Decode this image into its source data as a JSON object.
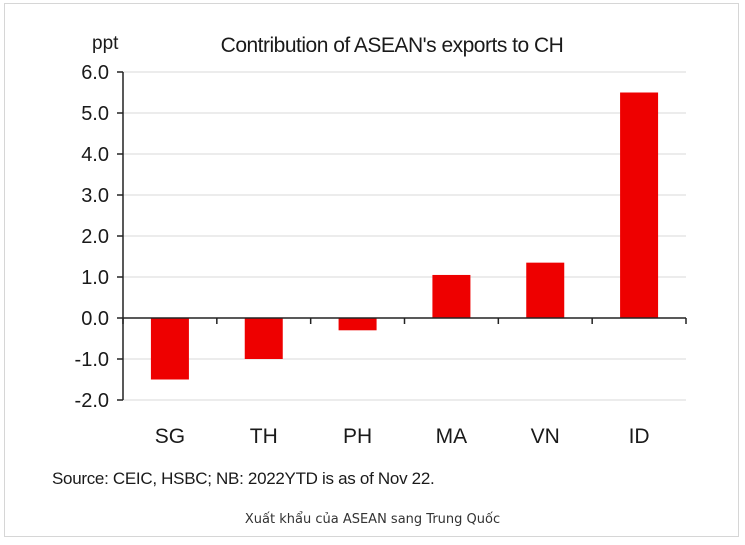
{
  "chart_data": {
    "type": "bar",
    "title": "Contribution of ASEAN's exports to CH",
    "ylabel": "ppt",
    "xlabel": "",
    "categories": [
      "SG",
      "TH",
      "PH",
      "MA",
      "VN",
      "ID"
    ],
    "values": [
      -1.5,
      -1.0,
      -0.3,
      1.05,
      1.35,
      5.5
    ],
    "ylim": [
      -2.0,
      6.0
    ],
    "yticks": [
      "6.0",
      "5.0",
      "4.0",
      "3.0",
      "2.0",
      "1.0",
      "0.0",
      "-1.0",
      "-2.0"
    ],
    "ytick_values": [
      6,
      5,
      4,
      3,
      2,
      1,
      0,
      -1,
      -2
    ],
    "grid": true,
    "bar_color": "#ee0000",
    "grid_color": "#d9d9d9"
  },
  "source": "Source: CEIC, HSBC; NB: 2022YTD is as of Nov 22.",
  "caption": "Xuất khẩu của ASEAN sang Trung Quốc"
}
